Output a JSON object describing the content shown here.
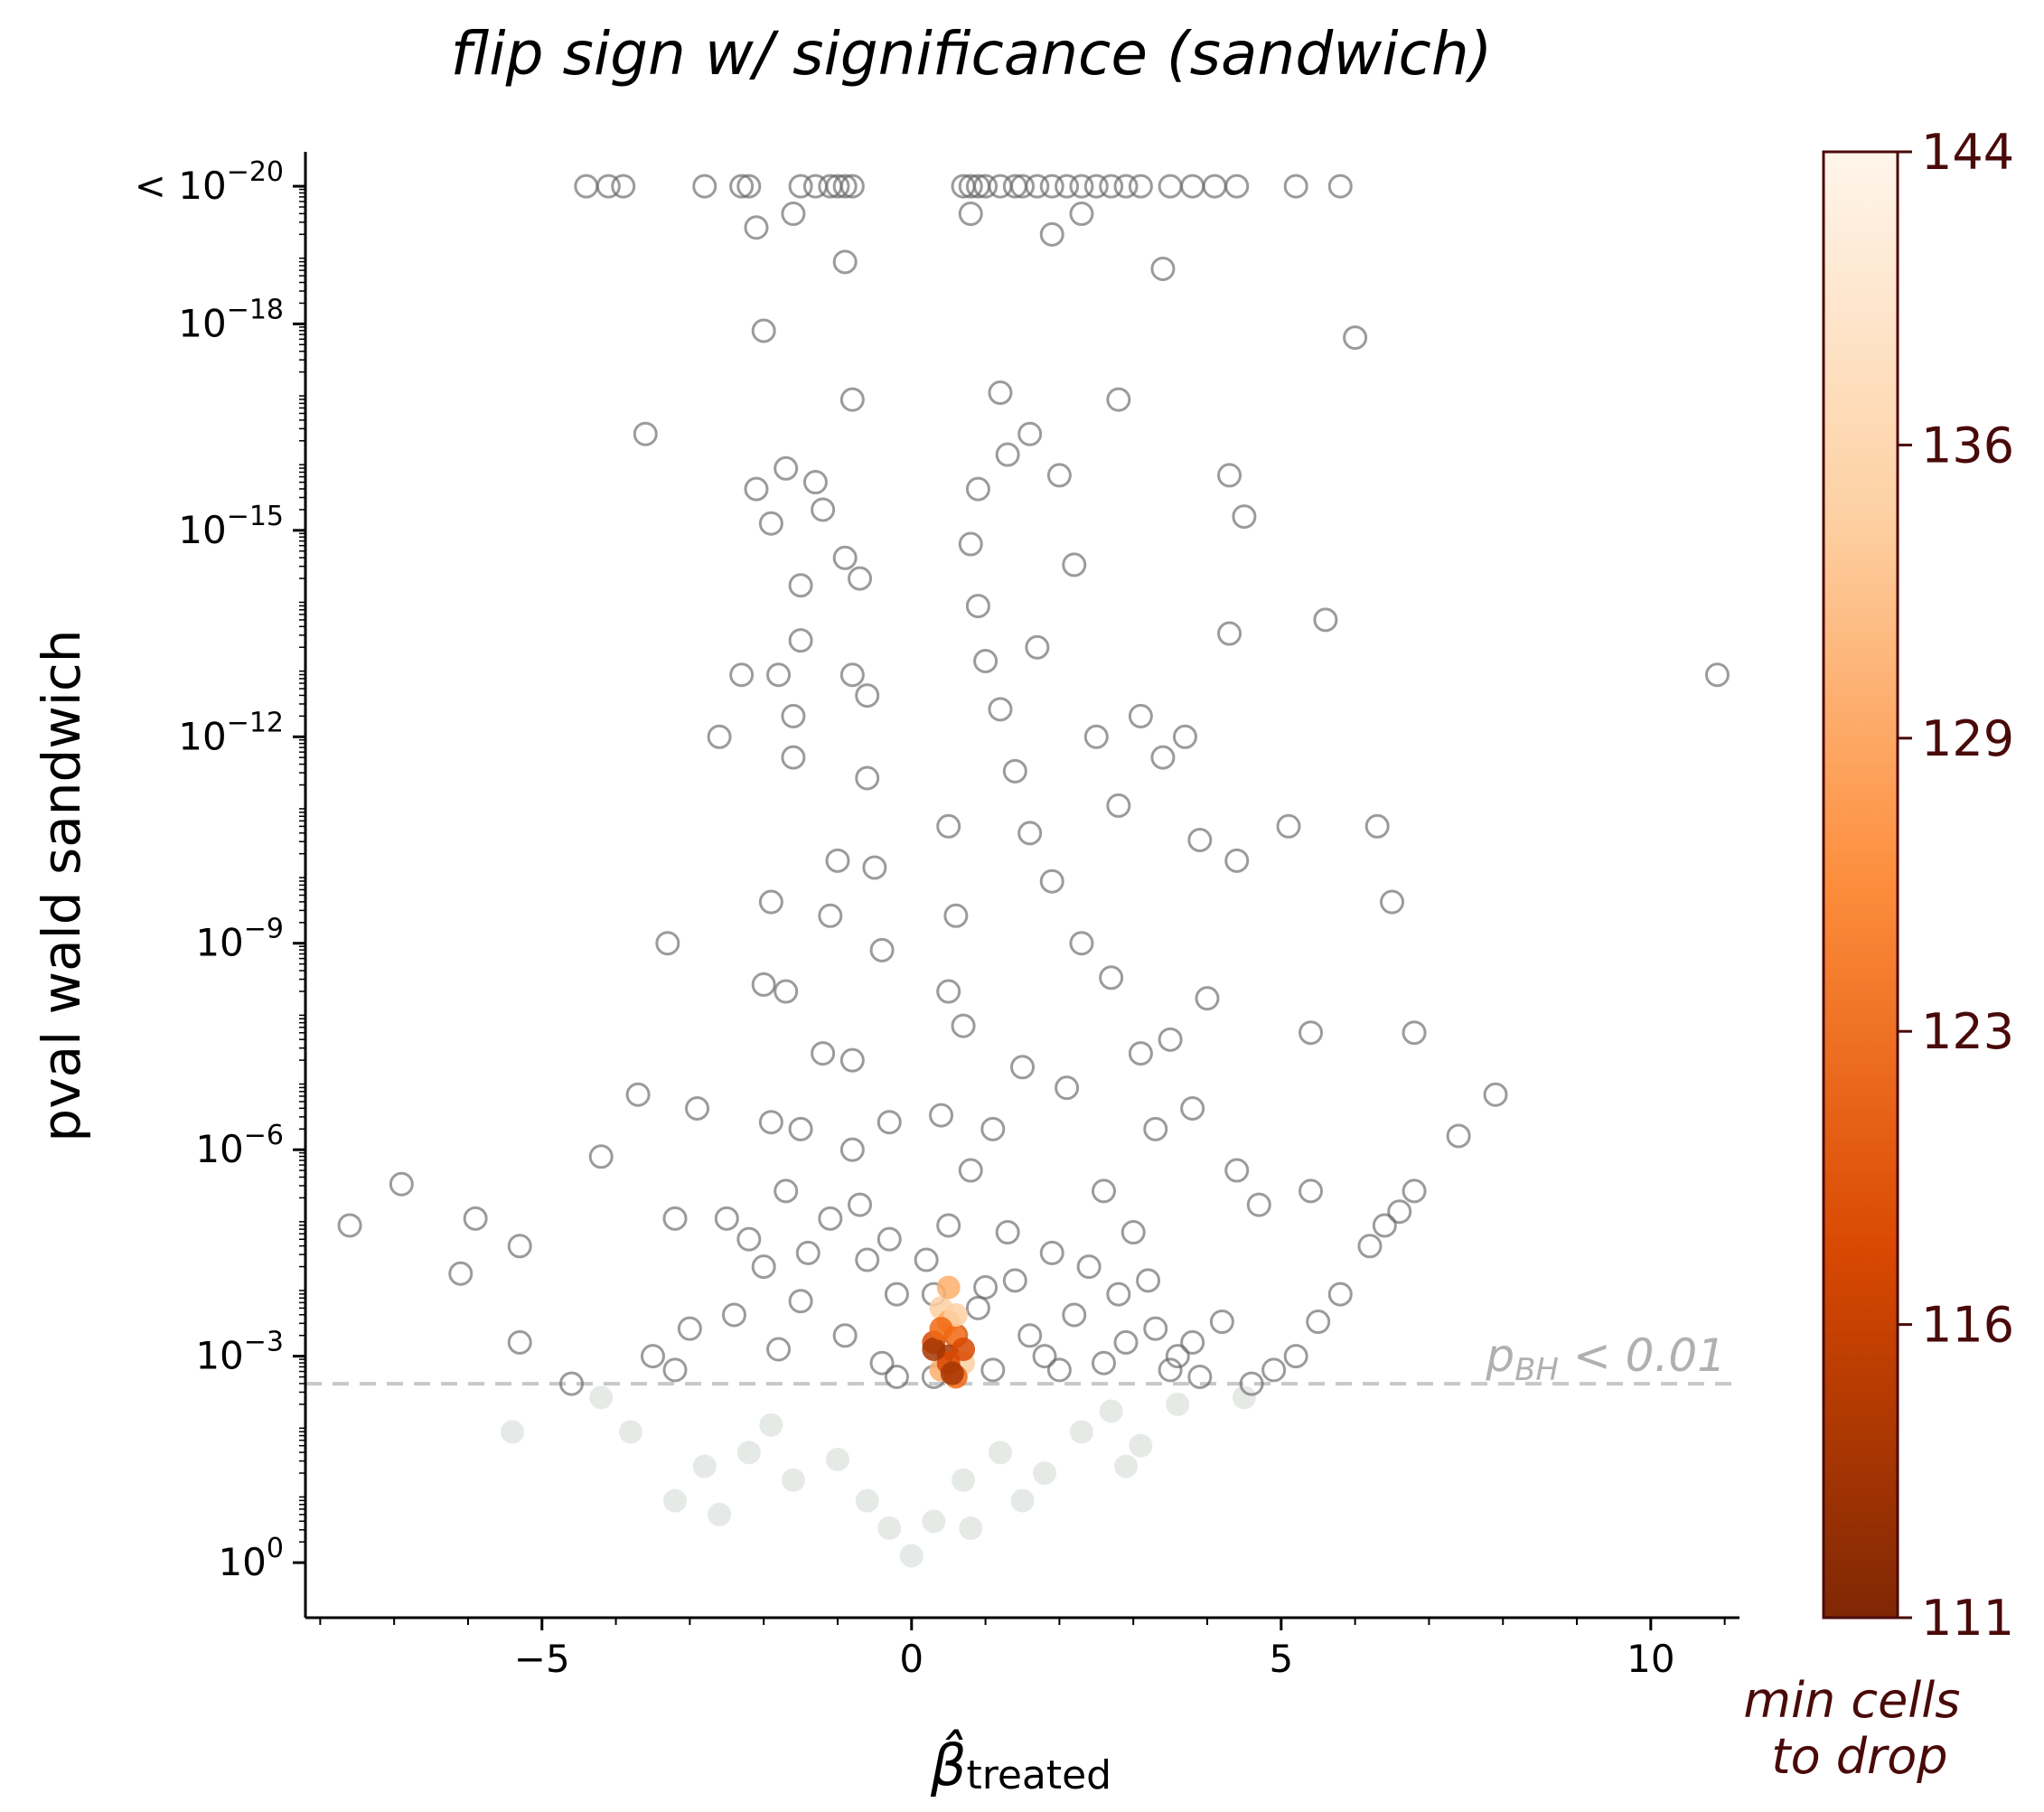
{
  "chart_data": {
    "type": "scatter",
    "title": "flip sign w/ significance (sandwich)",
    "xlabel_base": "β̂",
    "xlabel_sub": "treated",
    "ylabel": "pval wald sandwich",
    "xlim": [
      -8.2,
      11.2
    ],
    "y_scale": "log (inverted, -log10 p)",
    "ylim_neglog10": [
      -0.8,
      20.5
    ],
    "x_ticks": [
      -5,
      0,
      5,
      10
    ],
    "x_tick_labels": [
      "−5",
      "0",
      "5",
      "10"
    ],
    "y_ticks": [
      {
        "neglog10": 0,
        "base": "10",
        "exp": "0",
        "prefix": ""
      },
      {
        "neglog10": 3,
        "base": "10",
        "exp": "−3",
        "prefix": ""
      },
      {
        "neglog10": 6,
        "base": "10",
        "exp": "−6",
        "prefix": ""
      },
      {
        "neglog10": 9,
        "base": "10",
        "exp": "−9",
        "prefix": ""
      },
      {
        "neglog10": 12,
        "base": "10",
        "exp": "−12",
        "prefix": ""
      },
      {
        "neglog10": 15,
        "base": "10",
        "exp": "−15",
        "prefix": ""
      },
      {
        "neglog10": 18,
        "base": "10",
        "exp": "−18",
        "prefix": ""
      },
      {
        "neglog10": 20,
        "base": "10",
        "exp": "−20",
        "prefix": "< "
      }
    ],
    "threshold": {
      "neglog10": 2.6,
      "label_main": "p",
      "label_sub": "BH",
      "label_rest": " < 0.01"
    },
    "colorbar": {
      "label_line1": "min cells",
      "label_line2": "to drop",
      "tick_labels": [
        "144",
        "136",
        "129",
        "123",
        "116",
        "111"
      ],
      "tick_values": [
        144,
        136,
        129,
        123,
        116,
        111
      ],
      "range": [
        111,
        144
      ],
      "colors": [
        "#7f2704",
        "#d94801",
        "#fd8d3c",
        "#fdd0a2",
        "#fff5eb"
      ]
    },
    "colors": {
      "significant_edge": "#666666",
      "nonsignificant_fill": "#d6dcd6",
      "threshold_line": "#c8c8c8",
      "threshold_text": "#b0b0b0"
    },
    "series": [
      {
        "points": [
          [
            -4.4,
            20
          ],
          [
            -4.1,
            20
          ],
          [
            -3.9,
            20
          ],
          [
            -2.8,
            20
          ],
          [
            -2.3,
            20
          ],
          [
            -2.2,
            20
          ],
          [
            -1.5,
            20
          ],
          [
            -1.3,
            20
          ],
          [
            -1.1,
            20
          ],
          [
            -1.0,
            20
          ],
          [
            -0.9,
            20
          ],
          [
            -0.8,
            20
          ],
          [
            0.7,
            20
          ],
          [
            0.8,
            20
          ],
          [
            0.9,
            20
          ],
          [
            1.0,
            20
          ],
          [
            1.2,
            20
          ],
          [
            1.4,
            20
          ],
          [
            1.5,
            20
          ],
          [
            1.7,
            20
          ],
          [
            1.9,
            20
          ],
          [
            2.1,
            20
          ],
          [
            2.3,
            20
          ],
          [
            2.5,
            20
          ],
          [
            2.7,
            20
          ],
          [
            2.9,
            20
          ],
          [
            3.1,
            20
          ],
          [
            3.5,
            20
          ],
          [
            3.8,
            20
          ],
          [
            4.1,
            20
          ],
          [
            4.4,
            20
          ],
          [
            5.2,
            20
          ],
          [
            5.8,
            20
          ],
          [
            -2.1,
            19.4
          ],
          [
            -1.6,
            19.6
          ],
          [
            -0.9,
            18.9
          ],
          [
            0.8,
            19.6
          ],
          [
            1.9,
            19.3
          ],
          [
            2.3,
            19.6
          ],
          [
            3.4,
            18.8
          ],
          [
            -2.0,
            17.9
          ],
          [
            6.0,
            17.8
          ],
          [
            -0.8,
            16.9
          ],
          [
            1.2,
            17.0
          ],
          [
            2.8,
            16.9
          ],
          [
            -3.6,
            16.4
          ],
          [
            -1.7,
            15.9
          ],
          [
            -2.1,
            15.6
          ],
          [
            -1.3,
            15.7
          ],
          [
            4.3,
            15.8
          ],
          [
            4.5,
            15.2
          ],
          [
            -1.9,
            15.1
          ],
          [
            -1.2,
            15.3
          ],
          [
            -1.5,
            14.2
          ],
          [
            -0.7,
            14.3
          ],
          [
            5.6,
            13.7
          ],
          [
            4.3,
            13.5
          ],
          [
            10.9,
            12.9
          ],
          [
            -2.3,
            12.9
          ],
          [
            -1.8,
            12.9
          ],
          [
            -1.5,
            13.4
          ],
          [
            -0.8,
            12.9
          ],
          [
            -1.6,
            12.3
          ],
          [
            -1.6,
            11.7
          ],
          [
            -2.6,
            12.0
          ],
          [
            3.4,
            11.7
          ],
          [
            3.7,
            12.0
          ],
          [
            3.1,
            12.3
          ],
          [
            5.1,
            10.7
          ],
          [
            6.3,
            10.7
          ],
          [
            4.4,
            10.2
          ],
          [
            3.9,
            10.5
          ],
          [
            6.5,
            9.6
          ],
          [
            -3.3,
            9.0
          ],
          [
            -1.9,
            9.6
          ],
          [
            -2.0,
            8.4
          ],
          [
            -1.7,
            8.3
          ],
          [
            5.4,
            7.7
          ],
          [
            6.8,
            7.7
          ],
          [
            7.9,
            6.8
          ],
          [
            -3.7,
            6.8
          ],
          [
            -2.9,
            6.6
          ],
          [
            -1.9,
            6.4
          ],
          [
            -1.5,
            6.3
          ],
          [
            7.4,
            6.2
          ],
          [
            -4.2,
            5.9
          ],
          [
            -6.9,
            5.5
          ],
          [
            -7.6,
            4.9
          ],
          [
            -5.9,
            5.0
          ],
          [
            -5.3,
            4.6
          ],
          [
            -6.1,
            4.2
          ],
          [
            -3.2,
            5.0
          ],
          [
            -2.5,
            5.0
          ],
          [
            -2.0,
            4.3
          ],
          [
            -2.4,
            3.6
          ],
          [
            -3.0,
            3.4
          ],
          [
            -4.6,
            2.6
          ],
          [
            -3.5,
            3.0
          ],
          [
            -5.3,
            3.2
          ],
          [
            -3.2,
            2.8
          ],
          [
            6.8,
            5.4
          ],
          [
            6.6,
            5.1
          ],
          [
            6.4,
            4.9
          ],
          [
            6.2,
            4.6
          ],
          [
            5.8,
            3.9
          ],
          [
            5.5,
            3.5
          ],
          [
            5.2,
            3.0
          ],
          [
            4.9,
            2.8
          ],
          [
            4.6,
            2.6
          ],
          [
            4.2,
            3.5
          ],
          [
            3.8,
            3.2
          ],
          [
            3.6,
            3.0
          ],
          [
            3.9,
            2.7
          ],
          [
            5.4,
            5.4
          ],
          [
            4.4,
            5.7
          ],
          [
            4.7,
            5.2
          ],
          [
            3.8,
            6.6
          ],
          [
            3.3,
            6.3
          ],
          [
            3.5,
            7.6
          ],
          [
            4.0,
            8.2
          ],
          [
            3.1,
            7.4
          ],
          [
            2.7,
            8.5
          ],
          [
            2.3,
            9.0
          ],
          [
            1.9,
            9.9
          ],
          [
            1.6,
            10.6
          ],
          [
            1.4,
            11.5
          ],
          [
            1.2,
            12.4
          ],
          [
            1.0,
            13.1
          ],
          [
            0.9,
            13.9
          ],
          [
            0.8,
            14.8
          ],
          [
            0.9,
            15.6
          ],
          [
            1.3,
            16.1
          ],
          [
            1.6,
            16.4
          ],
          [
            2.0,
            15.8
          ],
          [
            2.2,
            14.5
          ],
          [
            1.7,
            13.3
          ],
          [
            2.5,
            12.0
          ],
          [
            2.8,
            11.0
          ],
          [
            0.5,
            10.7
          ],
          [
            0.6,
            9.4
          ],
          [
            0.5,
            8.3
          ],
          [
            0.4,
            6.5
          ],
          [
            0.7,
            7.8
          ],
          [
            1.1,
            6.3
          ],
          [
            1.5,
            7.2
          ],
          [
            2.1,
            6.9
          ],
          [
            2.6,
            5.4
          ],
          [
            3.0,
            4.8
          ],
          [
            -0.4,
            8.9
          ],
          [
            -0.5,
            10.1
          ],
          [
            -0.6,
            11.4
          ],
          [
            -1.0,
            10.2
          ],
          [
            -1.2,
            7.4
          ],
          [
            -0.8,
            6.0
          ],
          [
            -0.3,
            6.4
          ],
          [
            -0.6,
            4.4
          ],
          [
            -1.1,
            5.0
          ],
          [
            -0.2,
            3.9
          ],
          [
            -0.9,
            3.3
          ],
          [
            -1.5,
            3.8
          ],
          [
            -0.4,
            2.9
          ],
          [
            -1.8,
            3.1
          ],
          [
            -0.2,
            2.7
          ],
          [
            0.3,
            3.9
          ],
          [
            0.5,
            4.9
          ],
          [
            0.8,
            5.7
          ],
          [
            0.3,
            2.7
          ],
          [
            1.1,
            2.8
          ],
          [
            1.6,
            3.3
          ],
          [
            2.2,
            3.6
          ],
          [
            2.6,
            2.9
          ],
          [
            3.2,
            4.1
          ],
          [
            2.9,
            3.2
          ],
          [
            1.9,
            4.5
          ],
          [
            1.3,
            4.8
          ],
          [
            0.9,
            3.7
          ],
          [
            -0.8,
            7.3
          ],
          [
            -0.6,
            12.6
          ],
          [
            -0.9,
            14.6
          ],
          [
            -1.1,
            9.4
          ],
          [
            -1.7,
            5.4
          ],
          [
            -2.2,
            4.7
          ],
          [
            -1.4,
            4.5
          ],
          [
            -0.7,
            5.2
          ],
          [
            -0.3,
            4.7
          ],
          [
            0.2,
            4.4
          ],
          [
            0.6,
            3.3
          ],
          [
            1.0,
            4.0
          ],
          [
            1.4,
            4.1
          ],
          [
            1.8,
            3.0
          ],
          [
            2.0,
            2.8
          ],
          [
            2.4,
            4.3
          ],
          [
            2.8,
            3.9
          ],
          [
            3.3,
            3.4
          ],
          [
            3.5,
            2.8
          ]
        ]
      },
      {
        "name": "",
        "points": [
          [
            0.4,
            3.7
          ],
          [
            0.5,
            3.5
          ],
          [
            0.6,
            3.3
          ],
          [
            0.3,
            3.2
          ],
          [
            0.5,
            3.0
          ],
          [
            0.7,
            2.9
          ],
          [
            0.4,
            2.8
          ],
          [
            0.6,
            2.7
          ],
          [
            0.5,
            2.9
          ],
          [
            0.3,
            3.1
          ],
          [
            0.6,
            3.6
          ],
          [
            0.5,
            4.0
          ],
          [
            0.4,
            3.4
          ],
          [
            0.7,
            3.1
          ],
          [
            0.55,
            2.75
          ]
        ]
      },
      {
        "name": "",
        "points": [
          [
            -5.4,
            1.9
          ],
          [
            -4.2,
            2.4
          ],
          [
            -3.8,
            1.9
          ],
          [
            -3.2,
            0.9
          ],
          [
            -2.6,
            0.7
          ],
          [
            -2.2,
            1.6
          ],
          [
            -1.6,
            1.2
          ],
          [
            -1.0,
            1.5
          ],
          [
            -0.6,
            0.9
          ],
          [
            -0.3,
            0.5
          ],
          [
            0.0,
            0.1
          ],
          [
            0.3,
            0.6
          ],
          [
            0.7,
            1.2
          ],
          [
            1.2,
            1.6
          ],
          [
            1.8,
            1.3
          ],
          [
            2.3,
            1.9
          ],
          [
            2.7,
            2.2
          ],
          [
            3.1,
            1.7
          ],
          [
            3.6,
            2.3
          ],
          [
            4.5,
            2.4
          ],
          [
            2.9,
            1.4
          ],
          [
            1.5,
            0.9
          ],
          [
            0.8,
            0.5
          ],
          [
            -1.9,
            2.0
          ],
          [
            -2.8,
            1.4
          ]
        ]
      }
    ]
  }
}
